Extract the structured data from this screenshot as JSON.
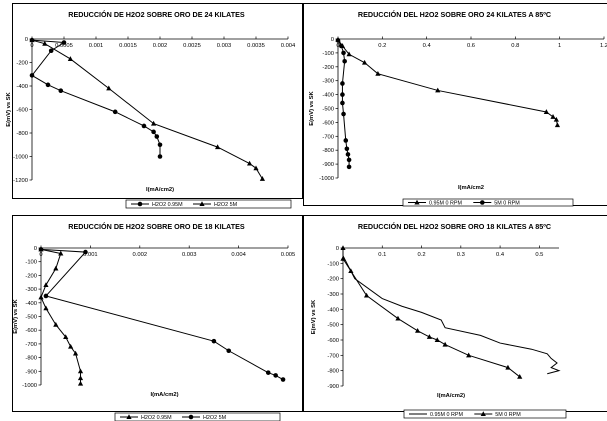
{
  "chart_data": [
    {
      "type": "line",
      "title": "REDUCCIÓN DE H2O2 SOBRE ORO DE 24 KILATES",
      "xlabel": "I(mA/cm2)",
      "ylabel": "E(mV) vs SK",
      "xlim": [
        0,
        0.004
      ],
      "ylim": [
        -1200,
        0
      ],
      "xticks": [
        "0",
        "0.0005",
        "0.001",
        "0.0015",
        "0.002",
        "0.0025",
        "0.003",
        "0.0035",
        "0.004"
      ],
      "yticks": [
        "0",
        "-200",
        "-400",
        "-600",
        "-800",
        "-1000",
        "-1200"
      ],
      "legend_position": "bottom",
      "grid": false,
      "series": [
        {
          "name": "H2O2 0.95M",
          "marker": "circle",
          "x": [
            0.0,
            0.0005,
            0.0003,
            0.0,
            0.00025,
            0.00045,
            0.0013,
            0.00175,
            0.0019,
            0.00195,
            0.002,
            0.002
          ],
          "y": [
            -10,
            -30,
            -100,
            -310,
            -390,
            -440,
            -620,
            -740,
            -790,
            -830,
            -900,
            -1000
          ]
        },
        {
          "name": "H2O2 5M",
          "marker": "triangle",
          "x": [
            0.0,
            0.0002,
            0.0006,
            0.0012,
            0.0019,
            0.0029,
            0.0034,
            0.0035,
            0.0036
          ],
          "y": [
            -10,
            -40,
            -170,
            -420,
            -720,
            -920,
            -1060,
            -1100,
            -1190
          ]
        }
      ]
    },
    {
      "type": "line",
      "title": "REDUCCIÓN DEL H2O2 SOBRE ORO 24 KILATES A 85ºC",
      "xlabel": "I(mA/cm2",
      "ylabel": "E(mV) vs SK",
      "xlim": [
        0,
        1.2
      ],
      "ylim": [
        -1000,
        0
      ],
      "xticks": [
        "0",
        "0.2",
        "0.4",
        "0.6",
        "0.8",
        "1",
        "1.2"
      ],
      "yticks": [
        "0",
        "-100",
        "-200",
        "-300",
        "-400",
        "-500",
        "-600",
        "-700",
        "-800",
        "-900",
        "-1000"
      ],
      "legend_position": "bottom",
      "grid": false,
      "series": [
        {
          "name": "0.95M 0 RPM",
          "marker": "triangle",
          "x": [
            0.0,
            0.02,
            0.05,
            0.12,
            0.18,
            0.45,
            0.94,
            0.97,
            0.985,
            0.99
          ],
          "y": [
            -5,
            -50,
            -110,
            -170,
            -250,
            -370,
            -525,
            -560,
            -580,
            -620
          ]
        },
        {
          "name": "5M 0 RPM",
          "marker": "circle",
          "x": [
            0.0,
            0.015,
            0.025,
            0.03,
            0.02,
            0.02,
            0.02,
            0.025,
            0.035,
            0.04,
            0.045,
            0.05,
            0.05
          ],
          "y": [
            -10,
            -50,
            -100,
            -160,
            -320,
            -400,
            -460,
            -540,
            -730,
            -790,
            -830,
            -870,
            -920
          ]
        }
      ]
    },
    {
      "type": "line",
      "title": "REDUCCIÓN DE H2O2 SOBRE ORO DE 18 KILATES",
      "xlabel": "I(mA/cm2)",
      "ylabel": "E(mV) vs SK",
      "xlim": [
        0,
        0.005
      ],
      "ylim": [
        -1000,
        0
      ],
      "xticks": [
        "0",
        "0.001",
        "0.002",
        "0.003",
        "0.004",
        "0.005"
      ],
      "yticks": [
        "0",
        "-100",
        "-200",
        "-300",
        "-400",
        "-500",
        "-600",
        "-700",
        "-800",
        "-900",
        "-1000"
      ],
      "legend_position": "bottom",
      "grid": false,
      "series": [
        {
          "name": "H2O2 0.95M",
          "marker": "triangle",
          "x": [
            0.0,
            0.0004,
            0.0003,
            0.0001,
            0.0,
            0.0001,
            0.0003,
            0.0005,
            0.0006,
            0.0007,
            0.0008,
            0.0008,
            0.0008
          ],
          "y": [
            -10,
            -40,
            -150,
            -270,
            -360,
            -440,
            -560,
            -650,
            -720,
            -770,
            -900,
            -950,
            -990
          ]
        },
        {
          "name": "H2O2 5M",
          "marker": "circle",
          "x": [
            0.0,
            0.0009,
            0.0001,
            0.0035,
            0.0038,
            0.0046,
            0.00475,
            0.0049
          ],
          "y": [
            -10,
            -30,
            -350,
            -680,
            -750,
            -910,
            -930,
            -960
          ]
        }
      ]
    },
    {
      "type": "line",
      "title": "REDUCCIÓN DEL H2O2 SOBRE ORO 18 KILATES A 85ºC",
      "xlabel": "I(mA/cm2)",
      "ylabel": "E(mV) vs SK",
      "xlim": [
        0,
        0.55
      ],
      "ylim": [
        -900,
        0
      ],
      "xticks": [
        "0.1",
        "0.2",
        "0.3",
        "0.4",
        "0.5"
      ],
      "yticks": [
        "0",
        "-100",
        "-200",
        "-300",
        "-400",
        "-500",
        "-600",
        "-700",
        "-800",
        "-900"
      ],
      "legend_position": "bottom",
      "grid": false,
      "series": [
        {
          "name": "0.95M 0 RPM",
          "marker": "none",
          "x": [
            0.0,
            0.03,
            0.1,
            0.15,
            0.2,
            0.25,
            0.26,
            0.35,
            0.4,
            0.48,
            0.52,
            0.53,
            0.545,
            0.53,
            0.55,
            0.52
          ],
          "y": [
            -50,
            -200,
            -330,
            -380,
            -420,
            -470,
            -520,
            -570,
            -620,
            -660,
            -690,
            -720,
            -750,
            -780,
            -800,
            -820
          ]
        },
        {
          "name": "5M 0 RPM",
          "marker": "triangle",
          "x": [
            0.0,
            0.0,
            0.02,
            0.06,
            0.14,
            0.19,
            0.22,
            0.24,
            0.26,
            0.32,
            0.42,
            0.45
          ],
          "y": [
            0,
            -70,
            -150,
            -310,
            -460,
            -540,
            -580,
            -600,
            -630,
            -700,
            -780,
            -840
          ]
        }
      ]
    }
  ]
}
